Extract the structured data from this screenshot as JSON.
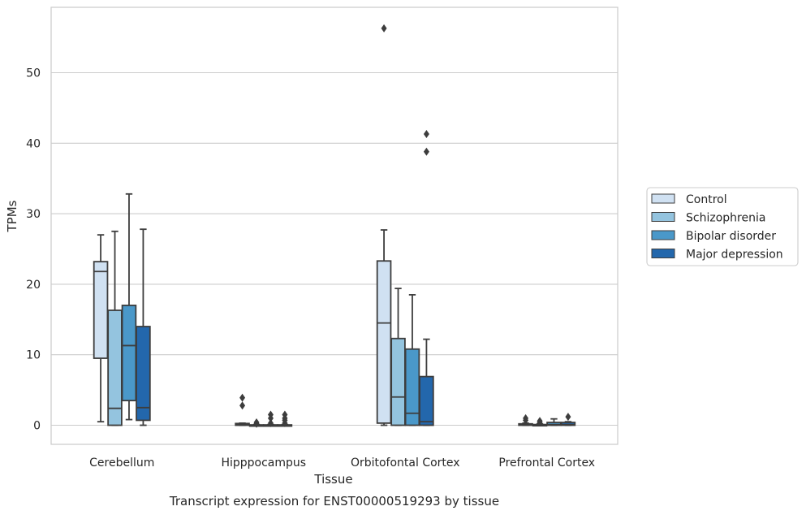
{
  "chart_data": {
    "type": "box",
    "xlabel": "Tissue",
    "ylabel": "TPMs",
    "caption": "Transcript expression for ENST00000519293 by tissue",
    "ylim": [
      -2.8,
      59.5
    ],
    "yticks": [
      0,
      10,
      20,
      30,
      40,
      50
    ],
    "grid": "horizontal",
    "legend_position": "right",
    "categories": [
      "Cerebellum",
      "Hipppocampus",
      "Orbitofontal Cortex",
      "Prefrontal Cortex"
    ],
    "series": [
      {
        "name": "Control",
        "color": "#d0e1f2",
        "boxes": [
          {
            "whislo": 0.5,
            "q1": 9.5,
            "med": 21.8,
            "q3": 23.2,
            "whishi": 27.0,
            "fliers": []
          },
          {
            "whislo": 0.0,
            "q1": 0.0,
            "med": 0.1,
            "q3": 0.25,
            "whishi": 0.3,
            "fliers": [
              2.8,
              3.9
            ]
          },
          {
            "whislo": 0.0,
            "q1": 0.3,
            "med": 14.5,
            "q3": 23.3,
            "whishi": 27.7,
            "fliers": [
              56.3
            ]
          },
          {
            "whislo": 0.0,
            "q1": 0.0,
            "med": 0.05,
            "q3": 0.2,
            "whishi": 0.3,
            "fliers": [
              0.7,
              1.0
            ]
          }
        ]
      },
      {
        "name": "Schizophrenia",
        "color": "#94c4df",
        "boxes": [
          {
            "whislo": 0.0,
            "q1": 0.0,
            "med": 2.4,
            "q3": 16.3,
            "whishi": 27.5,
            "fliers": []
          },
          {
            "whislo": 0.0,
            "q1": 0.0,
            "med": 0.0,
            "q3": 0.05,
            "whishi": 0.1,
            "fliers": [
              0.2,
              0.4
            ]
          },
          {
            "whislo": 0.0,
            "q1": 0.0,
            "med": 4.0,
            "q3": 12.3,
            "whishi": 19.4,
            "fliers": []
          },
          {
            "whislo": 0.0,
            "q1": 0.0,
            "med": 0.0,
            "q3": 0.1,
            "whishi": 0.2,
            "fliers": [
              0.4,
              0.6
            ]
          }
        ]
      },
      {
        "name": "Bipolar disorder",
        "color": "#4a98c9",
        "boxes": [
          {
            "whislo": 0.8,
            "q1": 3.5,
            "med": 11.3,
            "q3": 17.0,
            "whishi": 32.8,
            "fliers": []
          },
          {
            "whislo": 0.0,
            "q1": 0.0,
            "med": 0.0,
            "q3": 0.05,
            "whishi": 0.1,
            "fliers": [
              0.3,
              1.0,
              1.5
            ]
          },
          {
            "whislo": 0.0,
            "q1": 0.0,
            "med": 1.7,
            "q3": 10.8,
            "whishi": 18.5,
            "fliers": []
          },
          {
            "whislo": 0.0,
            "q1": 0.0,
            "med": 0.1,
            "q3": 0.4,
            "whishi": 0.9,
            "fliers": []
          }
        ]
      },
      {
        "name": "Major depression",
        "color": "#2367ac",
        "boxes": [
          {
            "whislo": 0.0,
            "q1": 0.7,
            "med": 2.5,
            "q3": 14.0,
            "whishi": 27.8,
            "fliers": []
          },
          {
            "whislo": 0.0,
            "q1": 0.0,
            "med": 0.0,
            "q3": 0.05,
            "whishi": 0.1,
            "fliers": [
              0.3,
              0.7,
              1.0,
              1.5
            ]
          },
          {
            "whislo": 0.0,
            "q1": 0.0,
            "med": 0.5,
            "q3": 6.9,
            "whishi": 12.2,
            "fliers": [
              38.8,
              41.3
            ]
          },
          {
            "whislo": 0.0,
            "q1": 0.0,
            "med": 0.1,
            "q3": 0.4,
            "whishi": 0.5,
            "fliers": [
              1.2
            ]
          }
        ]
      }
    ]
  }
}
